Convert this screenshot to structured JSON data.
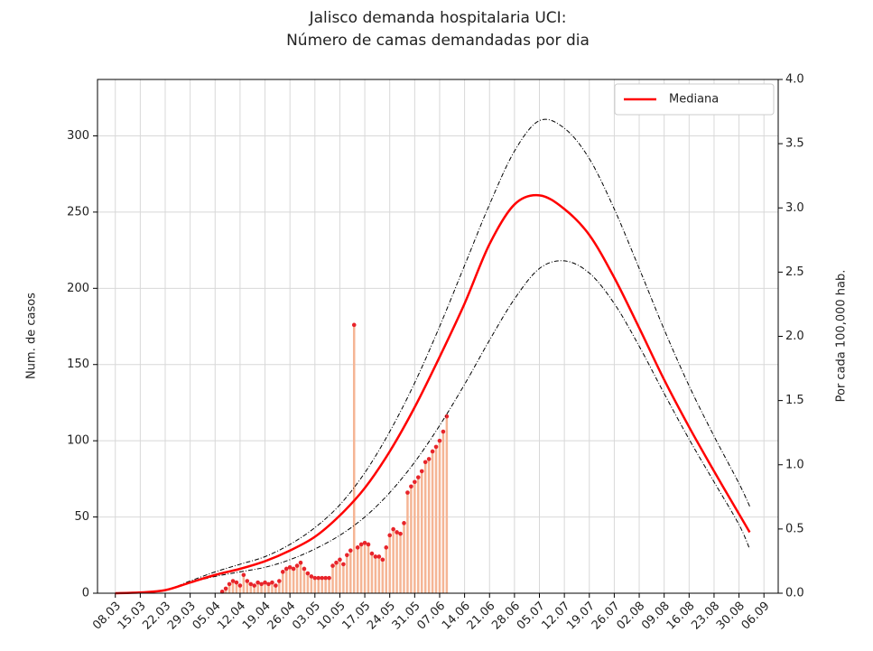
{
  "chart_data": {
    "type": "line",
    "title": [
      "Jalisco demanda hospitalaria UCI:",
      "Número de camas demandadas por dia"
    ],
    "ylabel": "Num. de casos",
    "y2label": "Por cada 100,000 hab.",
    "xlim": [
      "03.03",
      "10.09"
    ],
    "xticks": [
      "08.03",
      "15.03",
      "22.03",
      "29.03",
      "05.04",
      "12.04",
      "19.04",
      "26.04",
      "03.05",
      "10.05",
      "17.05",
      "24.05",
      "31.05",
      "07.06",
      "14.06",
      "21.06",
      "28.06",
      "05.07",
      "12.07",
      "19.07",
      "26.07",
      "02.08",
      "09.08",
      "16.08",
      "23.08",
      "30.08",
      "06.09"
    ],
    "ylim": [
      0,
      337
    ],
    "yticks": [
      0,
      50,
      100,
      150,
      200,
      250,
      300
    ],
    "y2lim": [
      0,
      4
    ],
    "y2ticks": [
      {
        "value": 0,
        "label": "0.0"
      },
      {
        "value": 0.5,
        "label": "0.5"
      },
      {
        "value": 1,
        "label": "1.0"
      },
      {
        "value": 1.5,
        "label": "1.5"
      },
      {
        "value": 2,
        "label": "2.0"
      },
      {
        "value": 2.5,
        "label": "2.5"
      },
      {
        "value": 3,
        "label": "3.0"
      },
      {
        "value": 3.5,
        "label": "3.5"
      },
      {
        "value": 4,
        "label": "4.0"
      }
    ],
    "grid": true,
    "legend": "upper right",
    "x": [
      "08.03",
      "15.03",
      "22.03",
      "29.03",
      "05.04",
      "12.04",
      "19.04",
      "26.04",
      "03.05",
      "10.05",
      "17.05",
      "24.05",
      "31.05",
      "07.06",
      "14.06",
      "21.06",
      "28.06",
      "05.07",
      "12.07",
      "19.07",
      "26.07",
      "02.08",
      "09.08",
      "16.08",
      "23.08",
      "30.08",
      "02.09"
    ],
    "series": [
      {
        "name": "Mediana",
        "color": "#ff0000",
        "values": [
          0,
          0.5,
          2,
          7,
          12,
          16,
          21,
          28,
          37,
          51,
          69,
          93,
          122,
          155,
          190,
          229,
          255,
          261,
          252,
          235,
          207,
          174,
          140,
          109,
          80,
          52,
          40
        ]
      }
    ],
    "interval": {
      "color": "#000000",
      "upper": [
        0,
        0.5,
        2,
        8,
        14,
        19,
        24,
        32,
        43,
        58,
        79,
        106,
        138,
        175,
        215,
        255,
        290,
        310,
        305,
        285,
        252,
        213,
        173,
        136,
        103,
        72,
        57
      ],
      "lower": [
        0,
        0.5,
        2,
        7,
        11,
        14,
        17,
        22,
        29,
        38,
        50,
        66,
        86,
        110,
        137,
        166,
        193,
        213,
        218,
        210,
        190,
        162,
        131,
        101,
        73,
        45,
        29
      ]
    },
    "observed": {
      "bar_color": "#f5b595",
      "dot_color": "#e8242a",
      "x": [
        "07.04",
        "08.04",
        "09.04",
        "10.04",
        "11.04",
        "12.04",
        "13.04",
        "14.04",
        "15.04",
        "16.04",
        "17.04",
        "18.04",
        "19.04",
        "20.04",
        "21.04",
        "22.04",
        "23.04",
        "24.04",
        "25.04",
        "26.04",
        "27.04",
        "28.04",
        "29.04",
        "30.04",
        "01.05",
        "02.05",
        "03.05",
        "04.05",
        "05.05",
        "06.05",
        "07.05",
        "08.05",
        "09.05",
        "10.05",
        "11.05",
        "12.05",
        "13.05",
        "14.05",
        "15.05",
        "16.05",
        "17.05",
        "18.05",
        "19.05",
        "20.05",
        "21.05",
        "22.05",
        "23.05",
        "24.05",
        "25.05",
        "26.05",
        "27.05",
        "28.05",
        "29.05",
        "30.05",
        "31.05",
        "01.06",
        "02.06",
        "03.06",
        "04.06",
        "05.06",
        "06.06",
        "07.06",
        "08.06",
        "09.06"
      ],
      "values": [
        1,
        3,
        6,
        8,
        7,
        5,
        12,
        8,
        6,
        5,
        7,
        6,
        7,
        6,
        7,
        5,
        8,
        14,
        16,
        17,
        16,
        18,
        20,
        16,
        13,
        11,
        10,
        10,
        10,
        10,
        10,
        18,
        20,
        22,
        19,
        25,
        28,
        176,
        30,
        32,
        33,
        32,
        26,
        24,
        24,
        22,
        30,
        38,
        42,
        40,
        39,
        46,
        66,
        70,
        73,
        76,
        80,
        86,
        88,
        93,
        96,
        100,
        106,
        116
      ]
    }
  }
}
